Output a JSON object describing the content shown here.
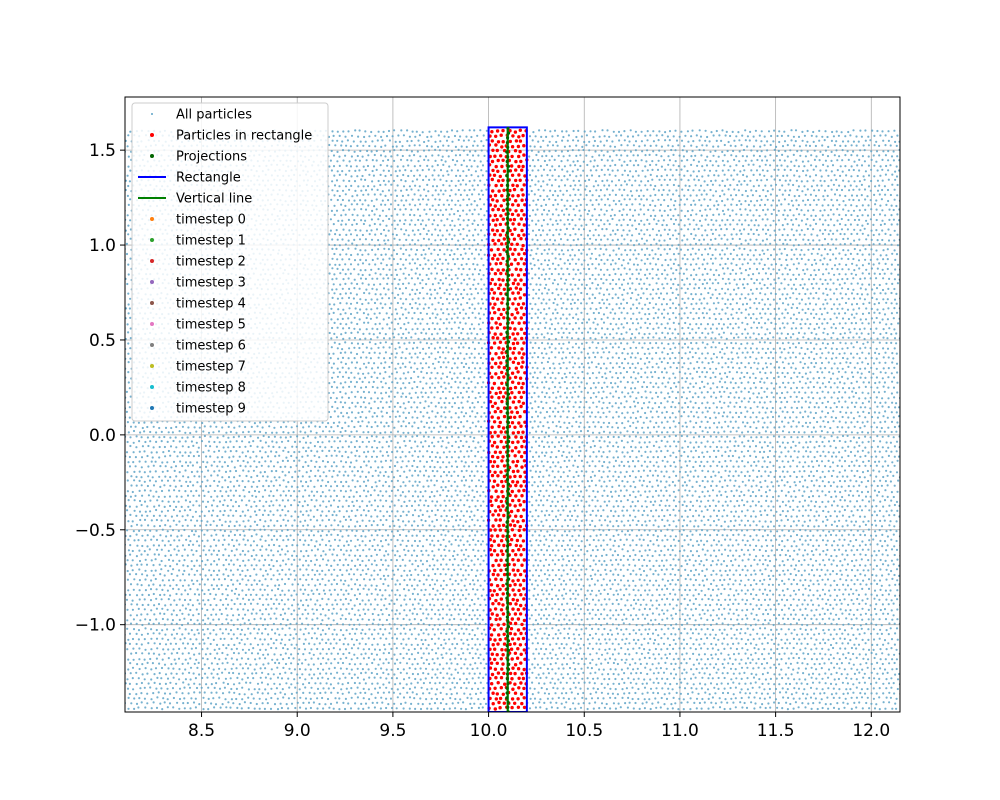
{
  "chart_data": {
    "type": "scatter",
    "title": "",
    "xlabel": "",
    "ylabel": "",
    "xlim": [
      8.1,
      12.15
    ],
    "ylim": [
      -1.46,
      1.78
    ],
    "grid": true,
    "legend_position": "upper-left",
    "x_ticks": [
      8.5,
      9.0,
      9.5,
      10.0,
      10.5,
      11.0,
      11.5,
      12.0
    ],
    "x_tick_labels": [
      "8.5",
      "9.0",
      "9.5",
      "10.0",
      "10.5",
      "11.0",
      "11.5",
      "12.0"
    ],
    "y_ticks": [
      -1.0,
      -0.5,
      0.0,
      0.5,
      1.0,
      1.5
    ],
    "y_tick_labels": [
      "−1.0",
      "−0.5",
      "0.0",
      "0.5",
      "1.0",
      "1.5"
    ],
    "particles_region": {
      "x_range": [
        8.1,
        12.15
      ],
      "y_range": [
        -1.46,
        1.6
      ],
      "spacing": 0.03
    },
    "rectangle": {
      "x": [
        10.0,
        10.2
      ],
      "y": [
        -1.46,
        1.62
      ]
    },
    "vertical_line": {
      "x": 10.1,
      "y": [
        -1.46,
        1.62
      ]
    },
    "series": [
      {
        "name": "All particles",
        "kind": "scatter",
        "color": "#5ea3c7",
        "marker_size": 1
      },
      {
        "name": "Particles in rectangle",
        "kind": "scatter",
        "color": "#ff0000",
        "marker_size": 2
      },
      {
        "name": "Projections",
        "kind": "scatter",
        "color": "#006400",
        "marker_size": 2
      },
      {
        "name": "Rectangle",
        "kind": "line",
        "color": "#0000ff"
      },
      {
        "name": "Vertical line",
        "kind": "line",
        "color": "#008000"
      },
      {
        "name": "timestep 0",
        "kind": "scatter",
        "color": "#ff7f0e",
        "marker_size": 2
      },
      {
        "name": "timestep 1",
        "kind": "scatter",
        "color": "#2ca02c",
        "marker_size": 2
      },
      {
        "name": "timestep 2",
        "kind": "scatter",
        "color": "#d62728",
        "marker_size": 2
      },
      {
        "name": "timestep 3",
        "kind": "scatter",
        "color": "#9467bd",
        "marker_size": 2
      },
      {
        "name": "timestep 4",
        "kind": "scatter",
        "color": "#8c564b",
        "marker_size": 2
      },
      {
        "name": "timestep 5",
        "kind": "scatter",
        "color": "#e377c2",
        "marker_size": 2
      },
      {
        "name": "timestep 6",
        "kind": "scatter",
        "color": "#7f7f7f",
        "marker_size": 2
      },
      {
        "name": "timestep 7",
        "kind": "scatter",
        "color": "#bcbd22",
        "marker_size": 2
      },
      {
        "name": "timestep 8",
        "kind": "scatter",
        "color": "#17becf",
        "marker_size": 2
      },
      {
        "name": "timestep 9",
        "kind": "scatter",
        "color": "#1f77b4",
        "marker_size": 2
      }
    ]
  }
}
